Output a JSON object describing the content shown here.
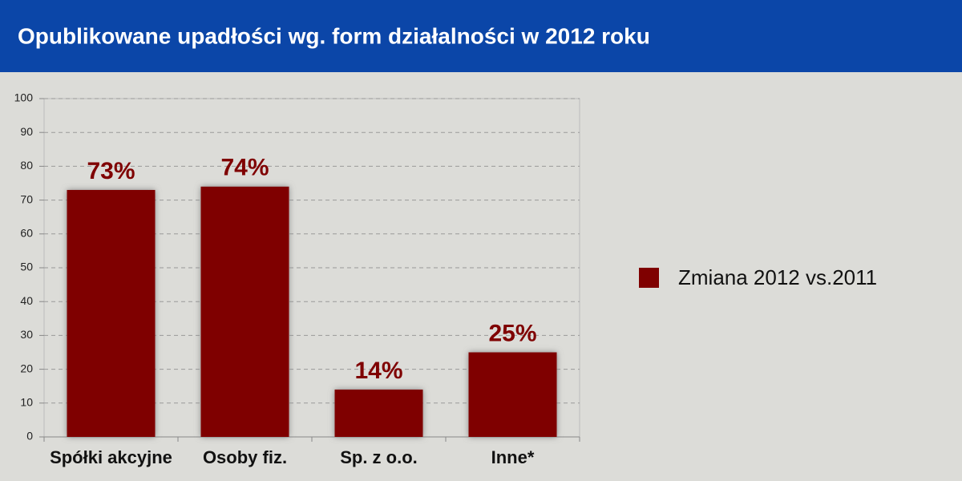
{
  "chart_data": {
    "type": "bar",
    "title": "Opublikowane upadłości wg. form działalności w 2012 roku",
    "categories": [
      "Spółki akcyjne",
      "Osoby fiz.",
      "Sp. z o.o.",
      "Inne*"
    ],
    "series": [
      {
        "name": "Zmiana 2012 vs.2011",
        "color": "#7f0000",
        "values": [
          73,
          74,
          14,
          25
        ],
        "value_labels": [
          "73%",
          "74%",
          "14%",
          "25%"
        ]
      }
    ],
    "ylim": [
      0,
      100
    ],
    "yticks": [
      0,
      10,
      20,
      30,
      40,
      50,
      60,
      70,
      80,
      90,
      100
    ],
    "grid": true,
    "legend": "right"
  }
}
